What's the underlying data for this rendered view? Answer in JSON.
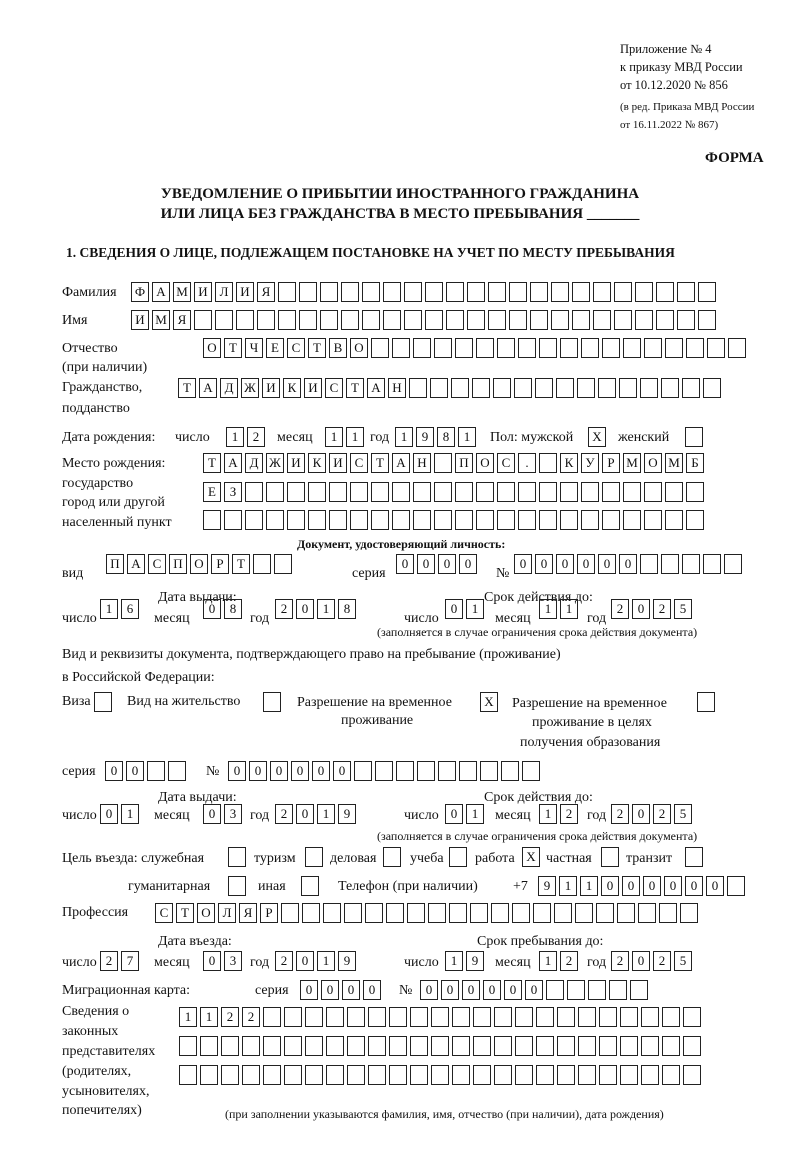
{
  "header": {
    "line1": "Приложение № 4",
    "line2": "к приказу МВД России",
    "line3": "от 10.12.2020 № 856",
    "line4": "(в ред. Приказа МВД России",
    "line5": "от 16.11.2022 № 867)",
    "forma": "ФОРМА"
  },
  "title": {
    "line1": "УВЕДОМЛЕНИЕ О ПРИБЫТИИ ИНОСТРАННОГО ГРАЖДАНИНА",
    "line2": "ИЛИ ЛИЦА БЕЗ ГРАЖДАНСТВА В МЕСТО ПРЕБЫВАНИЯ _______"
  },
  "section1": "1. СВЕДЕНИЯ О ЛИЦЕ, ПОДЛЕЖАЩЕМ ПОСТАНОВКЕ НА УЧЕТ ПО МЕСТУ ПРЕБЫВАНИЯ",
  "labels": {
    "surname": "Фамилия",
    "name": "Имя",
    "patronymic": "Отчество",
    "patronymic2": "(при наличии)",
    "citizenship": "Гражданство,",
    "citizenship2": "подданство",
    "birth_date": "Дата рождения:",
    "day": "число",
    "month": "месяц",
    "year": "год",
    "sex": "Пол: мужской",
    "female": "женский",
    "birth_place": "Место рождения:",
    "bp2": "государство",
    "bp3": "город или другой",
    "bp4": "населенный пункт",
    "id_doc": "Документ, удостоверяющий личность:",
    "kind": "вид",
    "series": "серия",
    "number": "№",
    "issue_date": "Дата выдачи:",
    "valid_until": "Срок действия до:",
    "valid_note": "(заполняется в случае ограничения срока действия документа)",
    "right_doc1": "Вид и реквизиты документа, подтверждающего право на пребывание (проживание)",
    "right_doc2": "в Российской Федерации:",
    "visa": "Виза",
    "residence": "Вид на жительство",
    "trp": "Разрешение на временное",
    "trp2": "проживание",
    "trp_edu": "Разрешение на временное",
    "trp_edu2": "проживание в целях",
    "trp_edu3": "получения образования",
    "purpose": "Цель въезда: служебная",
    "tourism": "туризм",
    "business": "деловая",
    "study": "учеба",
    "work": "работа",
    "private": "частная",
    "transit": "транзит",
    "humanitarian": "гуманитарная",
    "other": "иная",
    "phone": "Телефон (при наличии)",
    "phone_prefix": "+7",
    "profession": "Профессия",
    "entry_date": "Дата въезда:",
    "stay_until": "Срок пребывания до:",
    "migration_card": "Миграционная карта:",
    "legal1": "Сведения о",
    "legal2": "законных",
    "legal3": "представителях",
    "legal4": "(родителях,",
    "legal5": "усыновителях,",
    "legal6": "попечителях)",
    "legal_note": "(при заполнении указываются фамилия, имя, отчество (при наличии), дата рождения)"
  },
  "fields": {
    "surname": [
      "Ф",
      "А",
      "М",
      "И",
      "Л",
      "И",
      "Я",
      "",
      "",
      "",
      "",
      "",
      "",
      "",
      "",
      "",
      "",
      "",
      "",
      "",
      "",
      "",
      "",
      "",
      "",
      "",
      "",
      ""
    ],
    "name": [
      "И",
      "М",
      "Я",
      "",
      "",
      "",
      "",
      "",
      "",
      "",
      "",
      "",
      "",
      "",
      "",
      "",
      "",
      "",
      "",
      "",
      "",
      "",
      "",
      "",
      "",
      "",
      "",
      ""
    ],
    "patronymic": [
      "О",
      "Т",
      "Ч",
      "Е",
      "С",
      "Т",
      "В",
      "О",
      "",
      "",
      "",
      "",
      "",
      "",
      "",
      "",
      "",
      "",
      "",
      "",
      "",
      "",
      "",
      "",
      "",
      ""
    ],
    "citizenship": [
      "Т",
      "А",
      "Д",
      "Ж",
      "И",
      "К",
      "И",
      "С",
      "Т",
      "А",
      "Н",
      "",
      "",
      "",
      "",
      "",
      "",
      "",
      "",
      "",
      "",
      "",
      "",
      "",
      "",
      ""
    ],
    "birth_day": [
      "1",
      "2"
    ],
    "birth_month": [
      "1",
      "1"
    ],
    "birth_year": [
      "1",
      "9",
      "8",
      "1"
    ],
    "sex_male": [
      "X"
    ],
    "sex_female": [
      ""
    ],
    "birth_place_1": [
      "Т",
      "А",
      "Д",
      "Ж",
      "И",
      "К",
      "И",
      "С",
      "Т",
      "А",
      "Н",
      "",
      "П",
      "О",
      "С",
      ".",
      "",
      "К",
      "У",
      "Р",
      "М",
      "О",
      "М",
      "Б"
    ],
    "birth_place_2": [
      "Е",
      "З",
      "",
      "",
      "",
      "",
      "",
      "",
      "",
      "",
      "",
      "",
      "",
      "",
      "",
      "",
      "",
      "",
      "",
      "",
      "",
      "",
      "",
      ""
    ],
    "birth_place_3": [
      "",
      "",
      "",
      "",
      "",
      "",
      "",
      "",
      "",
      "",
      "",
      "",
      "",
      "",
      "",
      "",
      "",
      "",
      "",
      "",
      "",
      "",
      "",
      ""
    ],
    "doc_kind": [
      "П",
      "А",
      "С",
      "П",
      "О",
      "Р",
      "Т",
      "",
      ""
    ],
    "doc_series": [
      "0",
      "0",
      "0",
      "0"
    ],
    "doc_number": [
      "0",
      "0",
      "0",
      "0",
      "0",
      "0",
      "",
      "",
      "",
      "",
      ""
    ],
    "doc_issue_day": [
      "1",
      "6"
    ],
    "doc_issue_month": [
      "0",
      "8"
    ],
    "doc_issue_year": [
      "2",
      "0",
      "1",
      "8"
    ],
    "doc_valid_day": [
      "0",
      "1"
    ],
    "doc_valid_month": [
      "1",
      "1"
    ],
    "doc_valid_year": [
      "2",
      "0",
      "2",
      "5"
    ],
    "visa": [
      ""
    ],
    "residence": [
      ""
    ],
    "trp": [
      "X"
    ],
    "trp_edu": [
      ""
    ],
    "right_series": [
      "0",
      "0",
      "",
      ""
    ],
    "right_number": [
      "0",
      "0",
      "0",
      "0",
      "0",
      "0",
      "",
      "",
      "",
      "",
      "",
      "",
      "",
      "",
      ""
    ],
    "right_issue_day": [
      "0",
      "1"
    ],
    "right_issue_month": [
      "0",
      "3"
    ],
    "right_issue_year": [
      "2",
      "0",
      "1",
      "9"
    ],
    "right_valid_day": [
      "0",
      "1"
    ],
    "right_valid_month": [
      "1",
      "2"
    ],
    "right_valid_year": [
      "2",
      "0",
      "2",
      "5"
    ],
    "p_official": [
      ""
    ],
    "p_tourism": [
      ""
    ],
    "p_business": [
      ""
    ],
    "p_study": [
      ""
    ],
    "p_work": [
      "X"
    ],
    "p_private": [
      ""
    ],
    "p_transit": [
      ""
    ],
    "p_humanitarian": [
      ""
    ],
    "p_other": [
      ""
    ],
    "phone": [
      "9",
      "1",
      "1",
      "0",
      "0",
      "0",
      "0",
      "0",
      "0",
      ""
    ],
    "profession": [
      "С",
      "Т",
      "О",
      "Л",
      "Я",
      "Р",
      "",
      "",
      "",
      "",
      "",
      "",
      "",
      "",
      "",
      "",
      "",
      "",
      "",
      "",
      "",
      "",
      "",
      "",
      "",
      ""
    ],
    "entry_day": [
      "2",
      "7"
    ],
    "entry_month": [
      "0",
      "3"
    ],
    "entry_year": [
      "2",
      "0",
      "1",
      "9"
    ],
    "stay_day": [
      "1",
      "9"
    ],
    "stay_month": [
      "1",
      "2"
    ],
    "stay_year": [
      "2",
      "0",
      "2",
      "5"
    ],
    "mc_series": [
      "0",
      "0",
      "0",
      "0"
    ],
    "mc_number": [
      "0",
      "0",
      "0",
      "0",
      "0",
      "0",
      "",
      "",
      "",
      "",
      ""
    ],
    "legal_1": [
      "1",
      "1",
      "2",
      "2",
      "",
      "",
      "",
      "",
      "",
      "",
      "",
      "",
      "",
      "",
      "",
      "",
      "",
      "",
      "",
      "",
      "",
      "",
      "",
      "",
      ""
    ],
    "legal_2": [
      "",
      "",
      "",
      "",
      "",
      "",
      "",
      "",
      "",
      "",
      "",
      "",
      "",
      "",
      "",
      "",
      "",
      "",
      "",
      "",
      "",
      "",
      "",
      "",
      ""
    ],
    "legal_3": [
      "",
      "",
      "",
      "",
      "",
      "",
      "",
      "",
      "",
      "",
      "",
      "",
      "",
      "",
      "",
      "",
      "",
      "",
      "",
      "",
      "",
      "",
      "",
      "",
      ""
    ]
  }
}
